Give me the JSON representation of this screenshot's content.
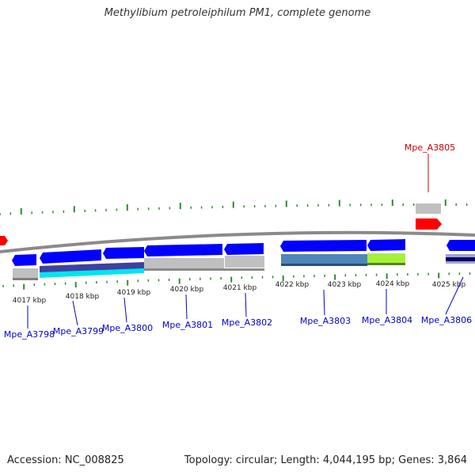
{
  "title": "Methylibium petroleiphilum PM1, complete genome",
  "accession_text": "Accession: NC_008825",
  "topology_text": "Topology: circular; Length: 4,044,195 bp; Genes: 3,864",
  "colors": {
    "forward_gene": "#0000ff",
    "reverse_gene": "#0000ff",
    "highlight_gene": "#ff0000",
    "label_blue": "#0000cc",
    "label_red": "#cc0000",
    "backbone": "#888888",
    "tick_green": "#228b22"
  },
  "scale_labels": [
    "4017 kbp",
    "4018 kbp",
    "4019 kbp",
    "4020 kbp",
    "4021 kbp",
    "4022 kbp",
    "4023 kbp",
    "4024 kbp",
    "4025 kbp"
  ],
  "gene_labels": [
    "Mpe_A3798",
    "Mpe_A3799",
    "Mpe_A3800",
    "Mpe_A3801",
    "Mpe_A3802",
    "Mpe_A3803",
    "Mpe_A3804",
    "Mpe_A3806"
  ],
  "highlight_label": "Mpe_A3805"
}
